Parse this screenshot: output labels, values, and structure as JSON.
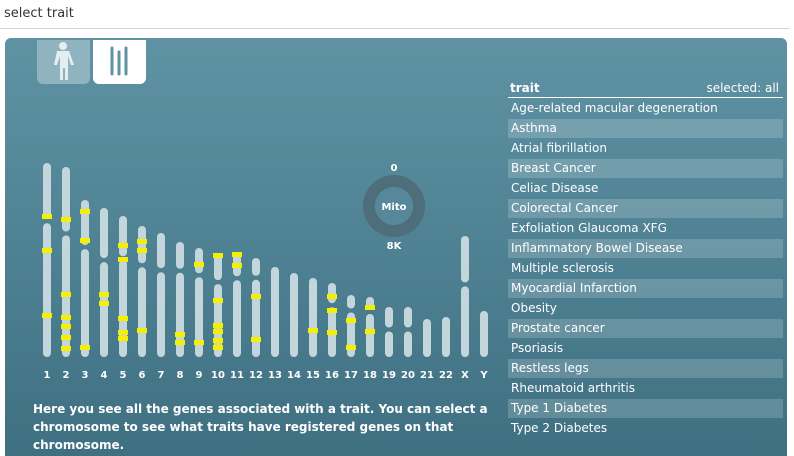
{
  "header": {
    "title": "select trait"
  },
  "chromosomes": {
    "labels": [
      "1",
      "2",
      "3",
      "4",
      "5",
      "6",
      "7",
      "8",
      "9",
      "10",
      "11",
      "12",
      "13",
      "14",
      "15",
      "16",
      "17",
      "18",
      "19",
      "20",
      "21",
      "22",
      "X",
      "Y"
    ],
    "mito": {
      "label": "Mito",
      "min": "0",
      "max": "8K"
    }
  },
  "description": "Here you see all the genes associated with a trait. You can select a chromosome to see what traits have registered genes on that chromosome.",
  "traits": {
    "header": "trait",
    "selected": "selected: all",
    "items": [
      "Age-related macular degeneration",
      "Asthma",
      "Atrial fibrillation",
      "Breast Cancer",
      "Celiac Disease",
      "Colorectal Cancer",
      "Exfoliation Glaucoma XFG",
      "Inflammatory Bowel Disease",
      "Multiple sclerosis",
      "Myocardial Infarction",
      "Obesity",
      "Prostate cancer",
      "Psoriasis",
      "Restless legs",
      "Rheumatoid arthritis",
      "Type 1 Diabetes",
      "Type 2 Diabetes"
    ]
  }
}
